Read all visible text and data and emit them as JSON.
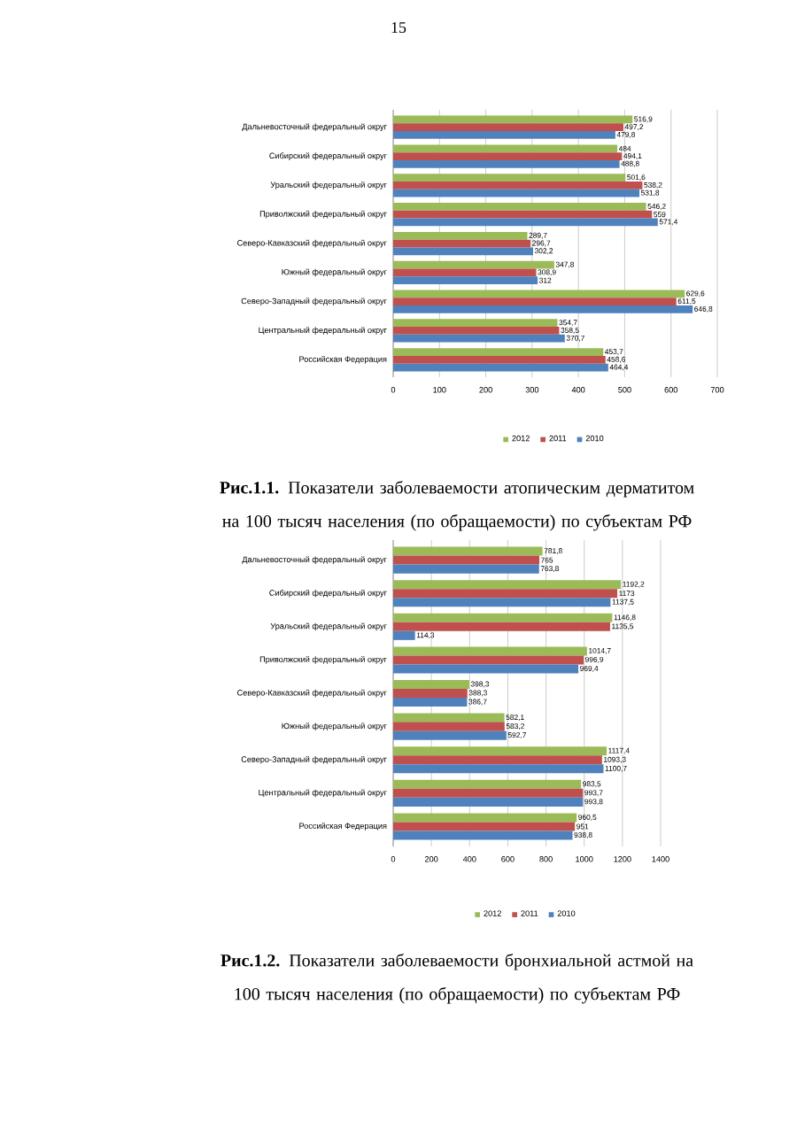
{
  "chart_data": [
    {
      "type": "bar",
      "orientation": "horizontal",
      "categories": [
        "Дальневосточный федеральный округ",
        "Сибирский федеральный округ",
        "Уральский федеральный округ",
        "Приволжский федеральный округ",
        "Северо-Кавказский федеральный округ",
        "Южный федеральный округ",
        "Северо-Западный федеральный округ",
        "Центральный федеральный округ",
        "Российская Федерация"
      ],
      "series": [
        {
          "name": "2012",
          "color": "#9bbb59",
          "values": [
            516.9,
            484,
            501.6,
            546.2,
            289.7,
            347.8,
            629.6,
            354.7,
            453.7
          ],
          "value_labels": [
            "516,9",
            "484",
            "501,6",
            "546,2",
            "289,7",
            "347,8",
            "629,6",
            "354,7",
            "453,7"
          ]
        },
        {
          "name": "2011",
          "color": "#c0504d",
          "values": [
            497.2,
            494.1,
            538.2,
            559,
            296.7,
            308.9,
            611.5,
            358.5,
            458.6
          ],
          "value_labels": [
            "497,2",
            "494,1",
            "538,2",
            "559",
            "296,7",
            "308,9",
            "611,5",
            "358,5",
            "458,6"
          ]
        },
        {
          "name": "2010",
          "color": "#4f81bd",
          "values": [
            479.8,
            488.8,
            531.8,
            571.4,
            302.2,
            312,
            646.8,
            370.7,
            464.4
          ],
          "value_labels": [
            "479,8",
            "488,8",
            "531,8",
            "571,4",
            "302,2",
            "312",
            "646,8",
            "370,7",
            "464,4"
          ]
        }
      ],
      "xlim": [
        0,
        700
      ],
      "xticks": [
        0,
        100,
        200,
        300,
        400,
        500,
        600,
        700
      ],
      "grid": "x",
      "legend": "bottom",
      "annotations": [
        "15",
        "**Рис.1.1.** Показатели заболеваемости атопическим дерматитом на 100 тысяч населения (по обращаемости) по субъектам РФ"
      ]
    },
    {
      "type": "bar",
      "orientation": "horizontal",
      "categories": [
        "Дальневосточный федеральный округ",
        "Сибирский федеральный округ",
        "Уральский федеральный округ",
        "Приволжский федеральный округ",
        "Северо-Кавказский федеральный округ",
        "Южный федеральный округ",
        "Северо-Западный федеральный округ",
        "Центральный федеральный округ",
        "Российская Федерация"
      ],
      "series": [
        {
          "name": "2012",
          "color": "#9bbb59",
          "values": [
            781.8,
            1192.2,
            1146.8,
            1014.7,
            398.3,
            582.1,
            1117.4,
            983.5,
            960.5
          ],
          "value_labels": [
            "781,8",
            "1192,2",
            "1146,8",
            "1014,7",
            "398,3",
            "582,1",
            "1117,4",
            "983,5",
            "960,5"
          ]
        },
        {
          "name": "2011",
          "color": "#c0504d",
          "values": [
            765,
            1173,
            1135.5,
            996.9,
            388.3,
            583.2,
            1093.3,
            993.7,
            951
          ],
          "value_labels": [
            "765",
            "1173",
            "1135,5",
            "996,9",
            "388,3",
            "583,2",
            "1093,3",
            "993,7",
            "951"
          ]
        },
        {
          "name": "2010",
          "color": "#4f81bd",
          "values": [
            763.8,
            1137.5,
            114.3,
            969.4,
            386.7,
            592.7,
            1100.7,
            993.8,
            938.8
          ],
          "value_labels": [
            "763,8",
            "1137,5",
            "114,3",
            "969,4",
            "386,7",
            "592,7",
            "1100,7",
            "993,8",
            "938,8"
          ]
        }
      ],
      "xlim": [
        0,
        1400
      ],
      "xticks": [
        0,
        200,
        400,
        600,
        800,
        1000,
        1200,
        1400
      ],
      "grid": "x",
      "legend": "bottom",
      "annotations": [
        "**Рис.1.2.** Показатели заболеваемости бронхиальной астмой на 100 тысяч населения (по обращаемости) по субъектам РФ"
      ]
    }
  ]
}
